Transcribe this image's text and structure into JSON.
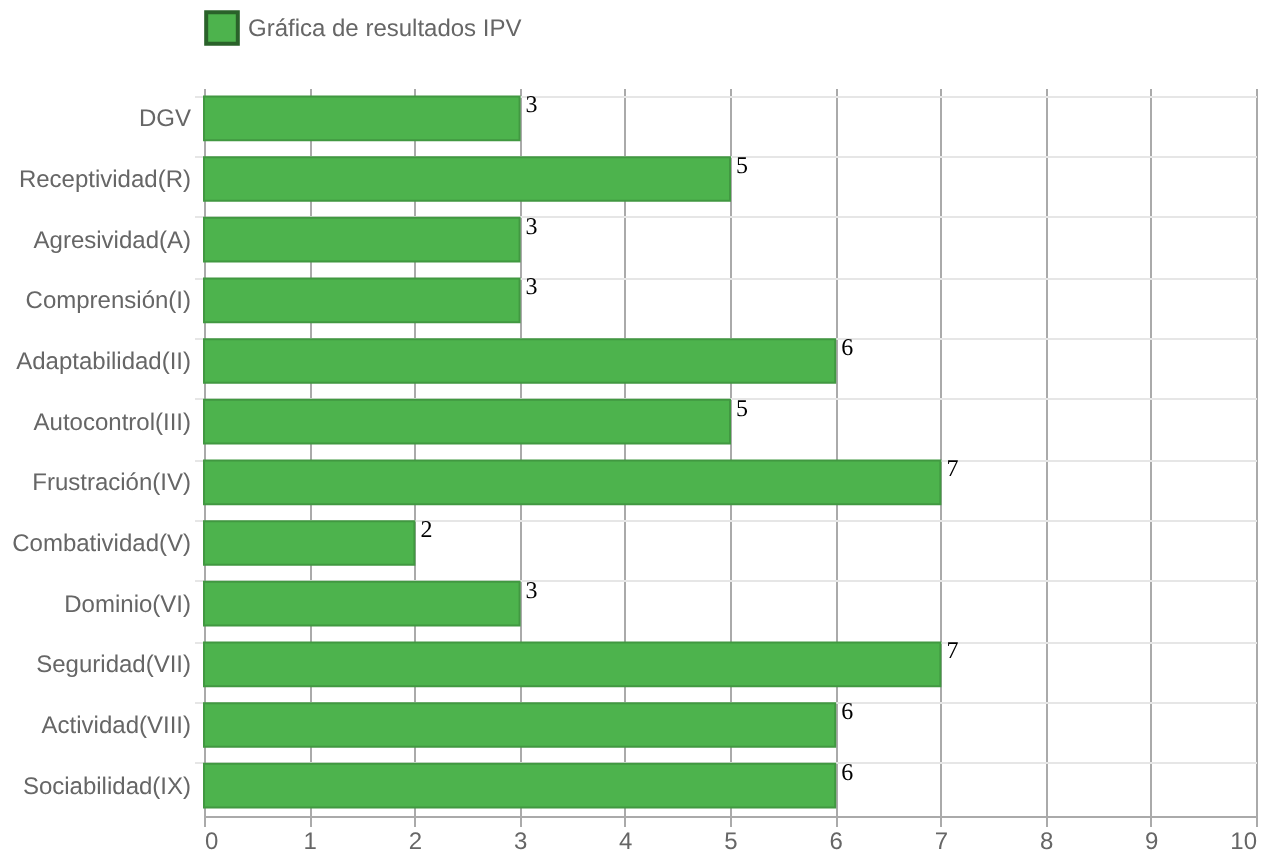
{
  "chart_data": {
    "type": "bar",
    "orientation": "horizontal",
    "categories": [
      "DGV",
      "Receptividad(R)",
      "Agresividad(A)",
      "Comprensión(I)",
      "Adaptabilidad(II)",
      "Autocontrol(III)",
      "Frustración(IV)",
      "Combatividad(V)",
      "Dominio(VI)",
      "Seguridad(VII)",
      "Actividad(VIII)",
      "Sociabilidad(IX)"
    ],
    "series": [
      {
        "name": "Gráfica de resultados IPV",
        "color": "#4db34d",
        "values": [
          3,
          5,
          3,
          3,
          6,
          5,
          7,
          2,
          3,
          7,
          6,
          6
        ]
      }
    ],
    "xlim": [
      0,
      10
    ],
    "xticks": [
      0,
      1,
      2,
      3,
      4,
      5,
      6,
      7,
      8,
      9,
      10
    ],
    "grid": true,
    "legend": "top",
    "data_labels": true
  }
}
